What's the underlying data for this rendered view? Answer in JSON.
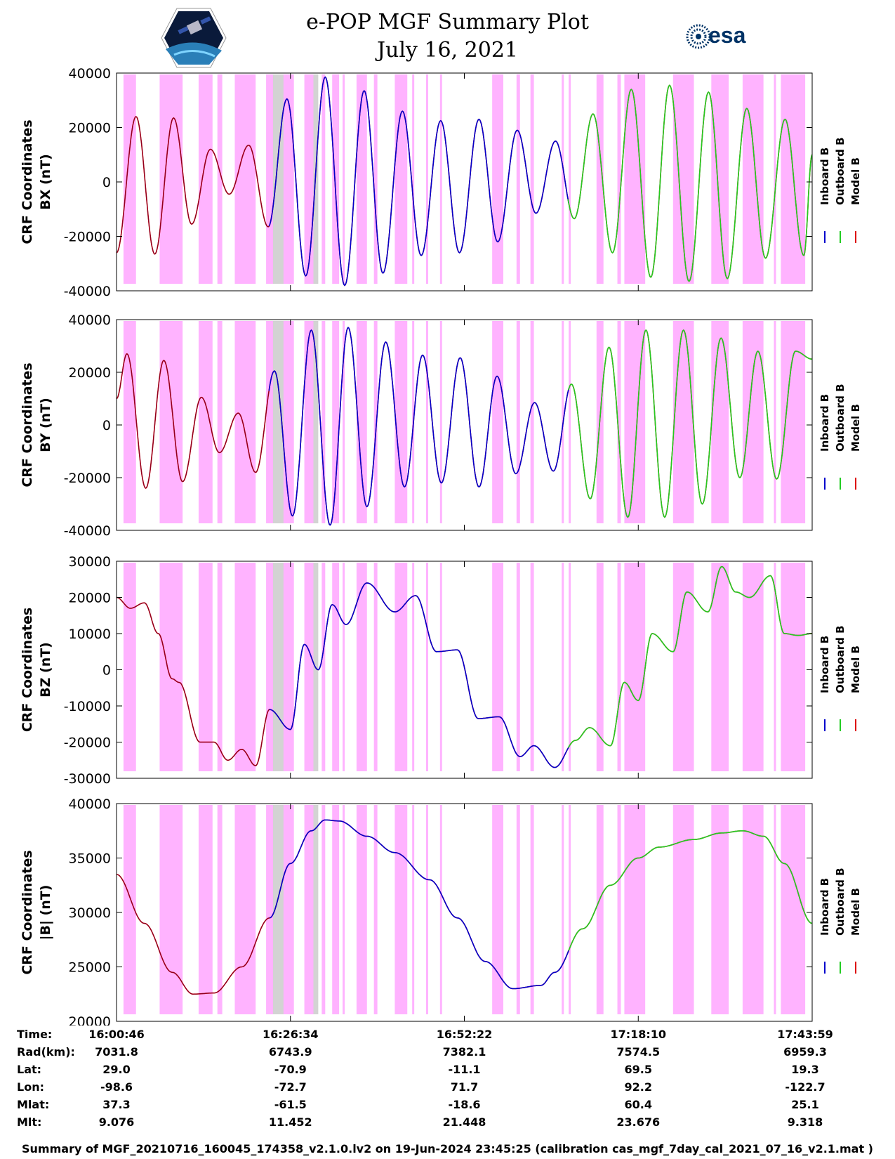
{
  "header": {
    "title": "e-POP MGF Summary Plot",
    "date": "July 16, 2021",
    "logo_left_icon": "cassiope-satellite-logo",
    "logo_right_text": "esa",
    "logo_right_icon": "esa-logo"
  },
  "colors": {
    "inboard": "#0000cc",
    "outboard": "#22cc22",
    "model": "#dd0000",
    "shade_pink": "#ffb3ff",
    "shade_gray": "#d3d3d3"
  },
  "chart_data": [
    {
      "type": "line",
      "ylabel": [
        "CRF Coordinates",
        "BX (nT)"
      ],
      "ylim": [
        -40000,
        40000
      ],
      "yticks": [
        -40000,
        -20000,
        0,
        20000,
        40000
      ],
      "legend": [
        "Inboard B",
        "Outboard B",
        "Model B"
      ],
      "peaks_x": [
        0,
        0.028,
        0.055,
        0.082,
        0.108,
        0.135,
        0.162,
        0.19,
        0.218,
        0.245,
        0.272,
        0.3,
        0.328,
        0.356,
        0.383,
        0.411,
        0.438,
        0.466,
        0.493,
        0.521,
        0.548,
        0.576,
        0.603,
        0.631,
        0.658,
        0.685,
        0.713,
        0.74,
        0.768,
        0.795,
        0.823,
        0.851,
        0.878,
        0.906,
        0.933,
        0.961,
        0.988,
        1.0
      ],
      "peaks_y": [
        -26000,
        24000,
        -26500,
        23500,
        -15500,
        12000,
        -4500,
        13500,
        -16500,
        30500,
        -34500,
        38500,
        -38000,
        33500,
        -33500,
        26000,
        -27000,
        22500,
        -26000,
        23000,
        -22000,
        19000,
        -11500,
        15000,
        -13500,
        25000,
        -26000,
        34000,
        -35000,
        35500,
        -36500,
        33000,
        -35500,
        27000,
        -28000,
        23000,
        -27000,
        10000
      ]
    },
    {
      "type": "line",
      "ylabel": [
        "CRF Coordinates",
        "BY (nT)"
      ],
      "ylim": [
        -40000,
        40000
      ],
      "yticks": [
        -40000,
        -20000,
        0,
        20000,
        40000
      ],
      "legend": [
        "Inboard B",
        "Outboard B",
        "Model B"
      ],
      "peaks_x": [
        0,
        0.015,
        0.042,
        0.068,
        0.095,
        0.122,
        0.148,
        0.175,
        0.2,
        0.227,
        0.253,
        0.28,
        0.307,
        0.333,
        0.36,
        0.387,
        0.414,
        0.44,
        0.467,
        0.494,
        0.521,
        0.547,
        0.574,
        0.601,
        0.628,
        0.654,
        0.681,
        0.708,
        0.735,
        0.761,
        0.788,
        0.815,
        0.842,
        0.869,
        0.896,
        0.922,
        0.949,
        0.976,
        1.0
      ],
      "peaks_y": [
        10000,
        27000,
        -24000,
        24500,
        -21500,
        10500,
        -10500,
        4500,
        -18000,
        20500,
        -34500,
        36000,
        -38000,
        37000,
        -31000,
        31500,
        -23500,
        26500,
        -22000,
        25500,
        -23500,
        18500,
        -18500,
        8500,
        -17500,
        15500,
        -28000,
        29500,
        -35000,
        36000,
        -35000,
        36000,
        -30000,
        33000,
        -20000,
        28000,
        -20500,
        28000,
        25000
      ]
    },
    {
      "type": "line",
      "ylabel": [
        "CRF Coordinates",
        "BZ (nT)"
      ],
      "ylim": [
        -30000,
        30000
      ],
      "yticks": [
        -30000,
        -20000,
        -10000,
        0,
        10000,
        20000,
        30000
      ],
      "legend": [
        "Inboard B",
        "Outboard B",
        "Model B"
      ],
      "points_x": [
        0,
        0.02,
        0.04,
        0.06,
        0.08,
        0.09,
        0.12,
        0.14,
        0.16,
        0.18,
        0.2,
        0.22,
        0.25,
        0.27,
        0.29,
        0.31,
        0.33,
        0.36,
        0.4,
        0.43,
        0.46,
        0.49,
        0.52,
        0.55,
        0.58,
        0.6,
        0.63,
        0.66,
        0.68,
        0.71,
        0.73,
        0.75,
        0.77,
        0.8,
        0.82,
        0.85,
        0.87,
        0.89,
        0.91,
        0.94,
        0.96,
        0.98,
        1.0
      ],
      "points_y": [
        20000,
        17000,
        18500,
        10000,
        -2500,
        -3500,
        -20000,
        -20000,
        -25000,
        -22000,
        -26500,
        -11000,
        -16500,
        7000,
        0,
        18000,
        12500,
        24000,
        16000,
        20500,
        5000,
        5500,
        -13500,
        -13000,
        -24000,
        -21000,
        -27000,
        -19500,
        -16000,
        -21000,
        -3500,
        -8500,
        10000,
        5000,
        21500,
        16000,
        28500,
        21500,
        20000,
        26000,
        10000,
        9500,
        10000
      ]
    },
    {
      "type": "line",
      "ylabel": [
        "CRF Coordinates",
        "|B| (nT)"
      ],
      "ylim": [
        20000,
        40000
      ],
      "yticks": [
        20000,
        25000,
        30000,
        35000,
        40000
      ],
      "legend": [
        "Inboard B",
        "Outboard B",
        "Model B"
      ],
      "points_x": [
        0,
        0.04,
        0.08,
        0.11,
        0.14,
        0.18,
        0.22,
        0.25,
        0.28,
        0.3,
        0.32,
        0.36,
        0.4,
        0.45,
        0.49,
        0.53,
        0.57,
        0.61,
        0.63,
        0.67,
        0.71,
        0.75,
        0.78,
        0.83,
        0.87,
        0.9,
        0.93,
        0.96,
        1.0
      ],
      "points_y": [
        33500,
        29000,
        24500,
        22500,
        22600,
        25000,
        29500,
        34500,
        37500,
        38500,
        38400,
        37000,
        35500,
        33000,
        29500,
        25500,
        23000,
        23300,
        24500,
        28500,
        32500,
        35000,
        36000,
        36700,
        37300,
        37500,
        37000,
        34500,
        29000
      ]
    }
  ],
  "shading": {
    "pink": [
      [
        0.01,
        0.028
      ],
      [
        0.062,
        0.095
      ],
      [
        0.118,
        0.138
      ],
      [
        0.145,
        0.152
      ],
      [
        0.17,
        0.2
      ],
      [
        0.215,
        0.255
      ],
      [
        0.27,
        0.285
      ],
      [
        0.295,
        0.3
      ],
      [
        0.31,
        0.32
      ],
      [
        0.325,
        0.328
      ],
      [
        0.345,
        0.36
      ],
      [
        0.37,
        0.375
      ],
      [
        0.4,
        0.418
      ],
      [
        0.425,
        0.428
      ],
      [
        0.445,
        0.448
      ],
      [
        0.465,
        0.468
      ],
      [
        0.54,
        0.556
      ],
      [
        0.575,
        0.58
      ],
      [
        0.595,
        0.6
      ],
      [
        0.64,
        0.643
      ],
      [
        0.65,
        0.653
      ],
      [
        0.69,
        0.7
      ],
      [
        0.72,
        0.725
      ],
      [
        0.73,
        0.76
      ],
      [
        0.8,
        0.83
      ],
      [
        0.855,
        0.88
      ],
      [
        0.9,
        0.93
      ],
      [
        0.945,
        0.948
      ],
      [
        0.955,
        0.99
      ]
    ],
    "gray": [
      [
        0.225,
        0.24
      ],
      [
        0.283,
        0.29
      ]
    ]
  },
  "time_axis": {
    "labels_x": [
      0.0,
      0.25,
      0.5,
      0.75,
      1.0
    ],
    "rows": [
      {
        "label": "Time:",
        "values": [
          "16:00:46",
          "16:26:34",
          "16:52:22",
          "17:18:10",
          "17:43:59"
        ]
      },
      {
        "label": "Rad(km):",
        "values": [
          "7031.8",
          "6743.9",
          "7382.1",
          "7574.5",
          "6959.3"
        ]
      },
      {
        "label": "Lat:",
        "values": [
          "29.0",
          "-70.9",
          "-11.1",
          "69.5",
          "19.3"
        ]
      },
      {
        "label": "Lon:",
        "values": [
          "-98.6",
          "-72.7",
          "71.7",
          "92.2",
          "-122.7"
        ]
      },
      {
        "label": "Mlat:",
        "values": [
          "37.3",
          "-61.5",
          "-18.6",
          "60.4",
          "25.1"
        ]
      },
      {
        "label": "Mlt:",
        "values": [
          "9.076",
          "11.452",
          "21.448",
          "23.676",
          "9.318"
        ]
      }
    ]
  },
  "footer": "Summary of MGF_20210716_160045_174358_v2.1.0.lv2 on 19-Jun-2024 23:45:25 (calibration cas_mgf_7day_cal_2021_07_16_v2.1.mat )"
}
